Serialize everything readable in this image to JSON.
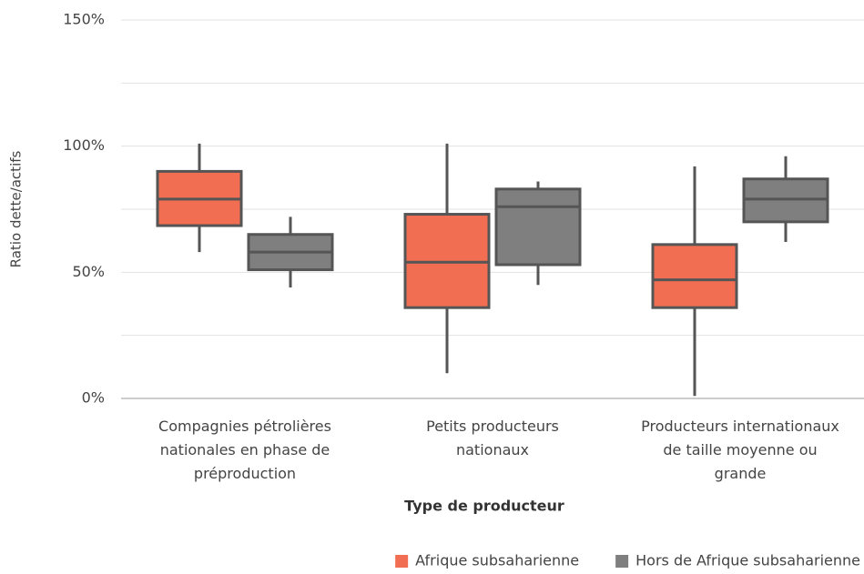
{
  "chart_data": {
    "type": "box",
    "x_label": "Type de producteur",
    "y_label": "Ratio dette/actifs",
    "categories": [
      "Compagnies pétrolières\nnationales en phase de\npréproduction",
      "Petits producteurs\nnationaux",
      "Producteurs internationaux\nde taille moyenne ou\ngrande"
    ],
    "series": [
      {
        "name": "Afrique subsaharienne",
        "color": "#f26e52",
        "min": [
          58,
          10,
          1
        ],
        "q1": [
          68.5,
          36,
          36
        ],
        "median": [
          79,
          54,
          47
        ],
        "q3": [
          90,
          73,
          61
        ],
        "max": [
          101,
          101,
          92
        ]
      },
      {
        "name": "Hors de Afrique subsaharienne",
        "color": "#7f7f7f",
        "min": [
          44,
          45,
          62
        ],
        "q1": [
          51,
          53,
          70
        ],
        "median": [
          58,
          76,
          79
        ],
        "q3": [
          65,
          83,
          87
        ],
        "max": [
          72,
          86,
          96
        ]
      }
    ],
    "ylim": [
      0,
      150
    ],
    "yticks": [
      {
        "value": 0,
        "label": "0%"
      },
      {
        "value": 50,
        "label": "50%"
      },
      {
        "value": 100,
        "label": "100%"
      },
      {
        "value": 150,
        "label": "150%"
      }
    ],
    "minor_grid": [
      25,
      75,
      125
    ],
    "grid": true,
    "legend": "bottom-right"
  }
}
